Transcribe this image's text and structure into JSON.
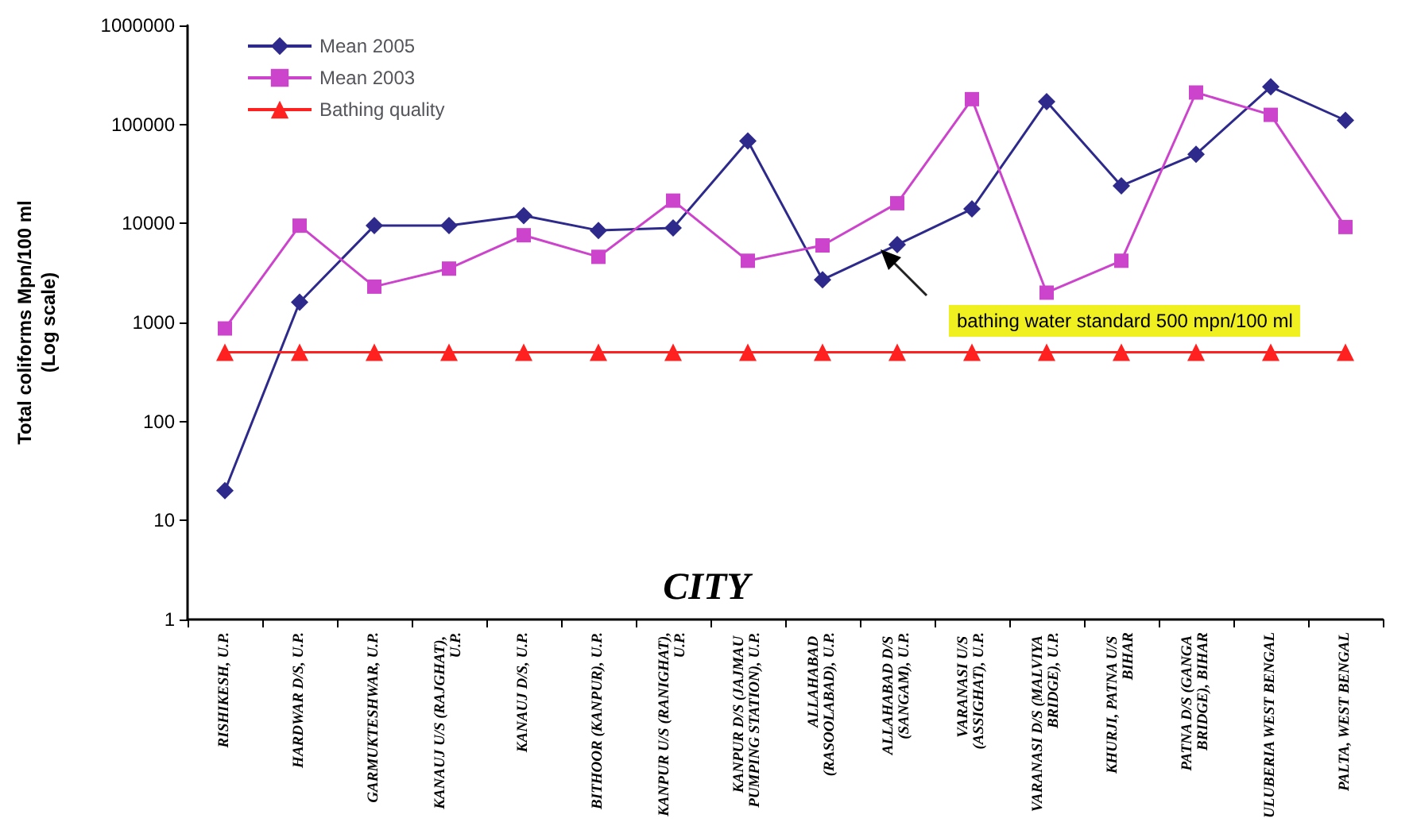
{
  "chart_data": {
    "type": "line",
    "xlabel": "CITY",
    "ylabel": "Total coliforms Mpn/100 ml\n(Log scale)",
    "categories": [
      "RISHIKESH, U.P.",
      "HARDWAR D/S, U.P.",
      "GARMUKTESHWAR, U.P.",
      "KANAUJ U/S (RAJGHAT), U.P.",
      "KANAUJ D/S, U.P.",
      "BITHOOR (KANPUR), U.P.",
      "KANPUR U/S (RANIGHAT), U.P.",
      "KANPUR D/S (JAJMAU PUMPING STATION), U.P.",
      "ALLAHABAD (RASOOLABAD), U.P.",
      "ALLAHABAD D/S (SANGAM), U.P.",
      "VARANASI U/S (ASSIGHAT), U.P.",
      "VARANASI D/S (MALVIYA BRIDGE), U.P.",
      "KHURJI, PATNA U/S BIHAR",
      "PATNA D/S (GANGA BRIDGE), BIHAR",
      "ULUBERIA WEST BENGAL",
      "PALTA, WEST BENGAL"
    ],
    "series": [
      {
        "name": "Mean 2005",
        "color": "#2e2a8c",
        "marker": "diamond",
        "values": [
          20,
          1600,
          9500,
          9500,
          12000,
          8500,
          9000,
          68000,
          2700,
          6100,
          14000,
          170000,
          24000,
          50000,
          240000,
          110000
        ]
      },
      {
        "name": "Mean 2003",
        "color": "#cc44cc",
        "marker": "square",
        "values": [
          870,
          9500,
          2300,
          3500,
          7600,
          4600,
          17000,
          4200,
          6000,
          16000,
          180000,
          2000,
          4200,
          210000,
          125000,
          9200
        ]
      },
      {
        "name": "Bathing quality",
        "color": "#ff2020",
        "marker": "triangle",
        "values": [
          500,
          500,
          500,
          500,
          500,
          500,
          500,
          500,
          500,
          500,
          500,
          500,
          500,
          500,
          500,
          500
        ]
      }
    ],
    "log": "y",
    "ylim": [
      1,
      1000000
    ],
    "yticks": [
      1,
      10,
      100,
      1000,
      10000,
      100000,
      1000000
    ],
    "grid": false,
    "legend": "top left",
    "annotations": [
      "bathing water standard 500 mpn/100 ml"
    ]
  }
}
